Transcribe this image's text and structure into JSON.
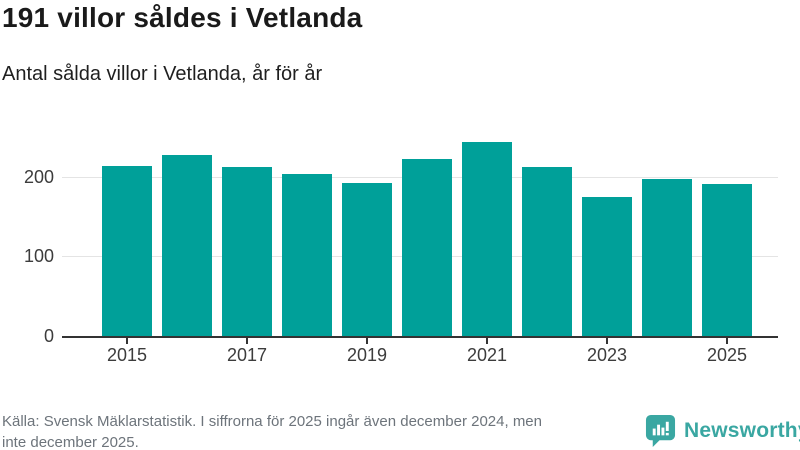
{
  "header": {
    "title": "191 villor såldes i Vetlanda",
    "subtitle": "Antal sålda villor i Vetlanda, år för år"
  },
  "chart_data": {
    "type": "bar",
    "title": "191 villor såldes i Vetlanda",
    "subtitle": "Antal sålda villor i Vetlanda, år för år",
    "categories": [
      "2015",
      "2016",
      "2017",
      "2018",
      "2019",
      "2020",
      "2021",
      "2022",
      "2023",
      "2024",
      "2025"
    ],
    "values": [
      214,
      228,
      212,
      204,
      192,
      223,
      244,
      212,
      175,
      197,
      191
    ],
    "x_tick_labels": [
      "2015",
      "2017",
      "2019",
      "2021",
      "2023",
      "2025"
    ],
    "y_ticks": [
      0,
      100,
      200
    ],
    "ylim": [
      0,
      260
    ],
    "xlabel": "",
    "ylabel": "",
    "grid": "horizontal",
    "legend": "none",
    "bar_color": "#00a099",
    "gridline_color": "#e4e4e4",
    "axis_color": "#333333"
  },
  "footer": {
    "source_lines": [
      "Källa: Svensk Mäklarstatistik. I siffrorna för 2025 ingår även december 2024, men",
      "inte december 2025."
    ],
    "brand": "Newsworthy",
    "brand_color": "#3aa7a2"
  }
}
